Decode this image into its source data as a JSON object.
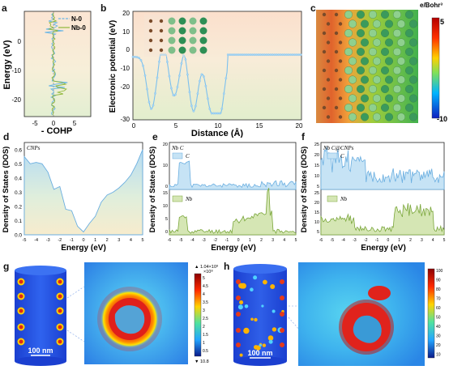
{
  "figure": {
    "panel_letters": {
      "a": "a",
      "b": "b",
      "c": "c",
      "d": "d",
      "e": "e",
      "f": "f",
      "g": "g",
      "h": "h"
    }
  },
  "panel_a": {
    "ylabel": "Energy (eV)",
    "xlabel": "- COHP",
    "legend": [
      "N-0",
      "Nb-0"
    ],
    "yticks": [
      "0",
      "-10",
      "-20"
    ],
    "xticks": [
      "-5",
      "0",
      "5"
    ]
  },
  "panel_b": {
    "ylabel": "Electronic potential (eV)",
    "xlabel": "Distance (Å)",
    "yticks": [
      "20",
      "10",
      "0",
      "-10",
      "-20",
      "-30"
    ],
    "xticks": [
      "0",
      "5",
      "10",
      "15",
      "20"
    ]
  },
  "panel_c": {
    "colorbar_title": "e/Bohr³",
    "cb_max": "5",
    "cb_min": "-10"
  },
  "panel_d": {
    "ylabel": "Density of States (DOS)",
    "xlabel": "Energy (eV)",
    "annotation": "CNPs",
    "yticks": [
      "0.6",
      "0.5",
      "0.4",
      "0.3",
      "0.2",
      "0.1",
      "0.0"
    ],
    "xticks": [
      "-5",
      "-4",
      "-3",
      "-2",
      "-1",
      "0",
      "1",
      "2",
      "3",
      "4",
      "5"
    ]
  },
  "panel_e": {
    "ylabel": "Density of States (DOS)",
    "xlabel": "Energy (eV)",
    "annotation": "Nb C",
    "legend_top": "C",
    "legend_bottom": "Nb",
    "top_yticks": [
      "20",
      "10",
      "0"
    ],
    "bottom_yticks": [
      "15",
      "10",
      "5",
      "0"
    ],
    "xticks": [
      "-6",
      "-5",
      "-4",
      "-3",
      "-2",
      "-1",
      "0",
      "1",
      "2",
      "3",
      "4",
      "5"
    ]
  },
  "panel_f": {
    "ylabel": "Density of States (DOS)",
    "xlabel": "Energy (eV)",
    "annotation": "Nb C@CNPs",
    "legend_top": "C",
    "legend_bottom": "Nb",
    "top_yticks": [
      "25",
      "20",
      "15",
      "10",
      "5"
    ],
    "bottom_yticks": [
      "25",
      "20",
      "15",
      "10",
      "5"
    ],
    "xticks": [
      "-6",
      "-5",
      "-4",
      "-3",
      "-2",
      "-1",
      "0",
      "1",
      "2",
      "3",
      "4",
      "5"
    ]
  },
  "panel_g": {
    "scale_bar": "100 nm",
    "cb_title": "▲ 1.04×10⁸",
    "cb_unit": "×10⁸",
    "cb_ticks": [
      "5",
      "4.5",
      "4",
      "3.5",
      "3",
      "2.5",
      "2",
      "1.5",
      "1",
      "0.5"
    ],
    "cb_min": "▼ 10.8"
  },
  "panel_h": {
    "scale_bar": "100 nm",
    "cb_ticks": [
      "100",
      "90",
      "80",
      "70",
      "60",
      "50",
      "40",
      "30",
      "20",
      "10"
    ]
  },
  "colors": {
    "cohp_n": "#6ab6e6",
    "cohp_nb": "#8fb83a",
    "potential": "#7cc0ee",
    "carbon_fill": "#c6e3f5",
    "nb_fill": "#c9dda2"
  }
}
